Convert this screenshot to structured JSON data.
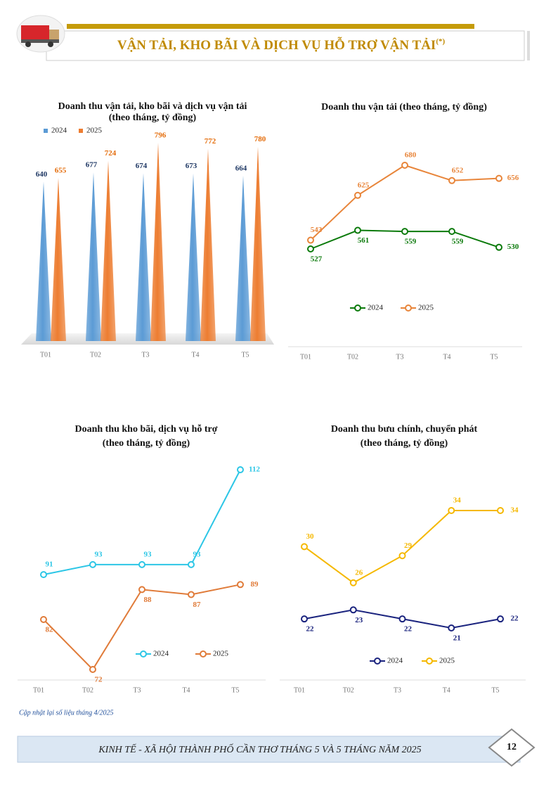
{
  "header": {
    "title": "VẬN TẢI, KHO BÃI VÀ DỊCH VỤ HỖ TRỢ VẬN TẢI",
    "title_sup": "(*)"
  },
  "chart_data": [
    {
      "type": "bar",
      "title": "Doanh thu vận tải, kho bãi và dịch vụ vận tải",
      "subtitle": "(theo tháng, tỷ đồng)",
      "categories": [
        "T01",
        "T02",
        "T3",
        "T4",
        "T5"
      ],
      "legend": "top-left",
      "series": [
        {
          "name": "2024",
          "color": "#5b9bd5",
          "values": [
            640,
            677,
            674,
            673,
            664
          ]
        },
        {
          "name": "2025",
          "color": "#ed7d31",
          "values": [
            655,
            724,
            796,
            772,
            780
          ]
        }
      ]
    },
    {
      "type": "line",
      "title": "Doanh thu vận tải (theo tháng, tỷ đồng)",
      "categories": [
        "T01",
        "T02",
        "T3",
        "T4",
        "T5"
      ],
      "legend": "bottom",
      "series": [
        {
          "name": "2024",
          "color": "#0b7a0b",
          "values": [
            527,
            561,
            559,
            559,
            530
          ]
        },
        {
          "name": "2025",
          "color": "#e8853a",
          "values": [
            543,
            625,
            680,
            652,
            656
          ]
        }
      ]
    },
    {
      "type": "line",
      "title": "Doanh thu kho bãi, dịch vụ hỗ trợ",
      "subtitle": "(theo tháng, tỷ đồng)",
      "categories": [
        "T01",
        "T02",
        "T3",
        "T4",
        "T5"
      ],
      "legend": "bottom",
      "series": [
        {
          "name": "2024",
          "color": "#2cc6e6",
          "values": [
            91,
            93,
            93,
            93,
            112
          ]
        },
        {
          "name": "2025",
          "color": "#e07b39",
          "values": [
            82,
            72,
            88,
            87,
            89
          ]
        }
      ]
    },
    {
      "type": "line",
      "title": "Doanh thu bưu chính, chuyển phát",
      "subtitle": "(theo tháng, tỷ đồng)",
      "categories": [
        "T01",
        "T02",
        "T3",
        "T4",
        "T5"
      ],
      "legend": "bottom",
      "series": [
        {
          "name": "2024",
          "color": "#1a237e",
          "values": [
            22,
            23,
            22,
            21,
            22
          ]
        },
        {
          "name": "2025",
          "color": "#f5b800",
          "values": [
            30,
            26,
            29,
            34,
            34
          ]
        }
      ]
    }
  ],
  "note": "Cập nhật lại số liệu tháng 4/2025",
  "footer": {
    "text": "KINH TẾ - XÃ HỘI THÀNH PHỐ CẦN THƠ THÁNG 5 VÀ 5 THÁNG NĂM 2025",
    "page": "12"
  }
}
